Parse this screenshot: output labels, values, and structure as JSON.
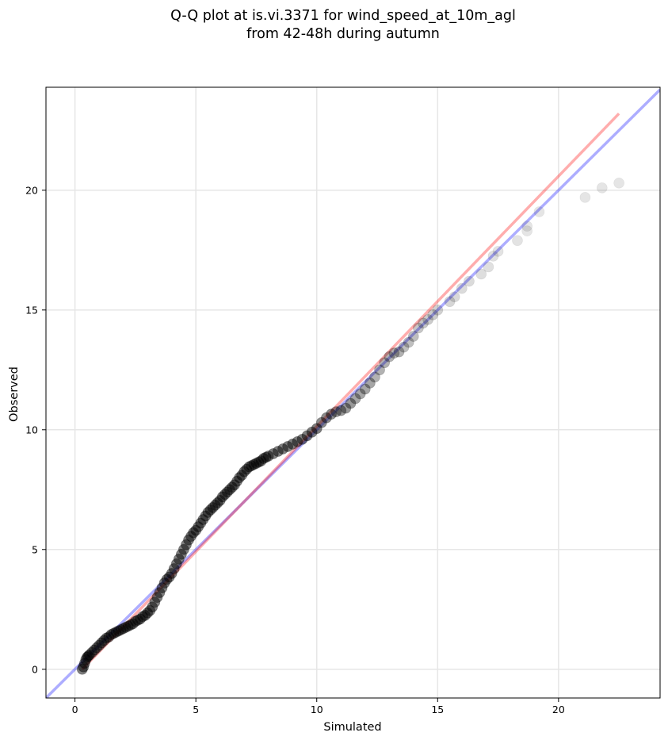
{
  "chart_data": {
    "type": "scatter",
    "title": "Q-Q plot at is.vi.3371 for wind_speed_at_10m_agl",
    "subtitle": "from 42-48h during autumn",
    "xlabel": "Simulated",
    "ylabel": "Observed",
    "xlim": [
      -1.2,
      24.2
    ],
    "ylim": [
      -1.2,
      24.3
    ],
    "xticks": [
      0,
      5,
      10,
      15,
      20
    ],
    "yticks": [
      0,
      5,
      10,
      15,
      20
    ],
    "grid": true,
    "colors": {
      "points": "#000000",
      "identity_line": "#0000ff",
      "fit_line": "#ff0000"
    },
    "identity_line": {
      "x": [
        -1.2,
        24.2
      ],
      "y": [
        -1.2,
        24.2
      ]
    },
    "fit_line": {
      "x": [
        0.3,
        22.5
      ],
      "y": [
        0.0,
        23.2
      ]
    },
    "points": {
      "x": [
        0.3,
        0.35,
        0.4,
        0.45,
        0.5,
        0.55,
        0.6,
        0.7,
        0.8,
        0.9,
        1.0,
        1.1,
        1.2,
        1.3,
        1.4,
        1.5,
        1.6,
        1.7,
        1.8,
        1.9,
        2.0,
        2.1,
        2.2,
        2.3,
        2.4,
        2.5,
        2.6,
        2.7,
        2.8,
        2.9,
        3.0,
        3.1,
        3.2,
        3.3,
        3.4,
        3.5,
        3.6,
        3.7,
        3.8,
        3.9,
        4.0,
        4.1,
        4.2,
        4.3,
        4.4,
        4.5,
        4.6,
        4.7,
        4.8,
        4.9,
        5.0,
        5.1,
        5.2,
        5.3,
        5.4,
        5.5,
        5.6,
        5.7,
        5.8,
        5.9,
        6.0,
        6.1,
        6.2,
        6.3,
        6.4,
        6.5,
        6.6,
        6.7,
        6.8,
        6.9,
        7.0,
        7.1,
        7.2,
        7.3,
        7.4,
        7.5,
        7.6,
        7.7,
        7.8,
        7.9,
        8.0,
        8.2,
        8.4,
        8.6,
        8.8,
        9.0,
        9.2,
        9.4,
        9.6,
        9.8,
        10.0,
        10.2,
        10.4,
        10.6,
        10.8,
        11.0,
        11.2,
        11.4,
        11.6,
        11.8,
        12.0,
        12.2,
        12.4,
        12.6,
        12.8,
        13.0,
        13.2,
        13.4,
        13.6,
        13.8,
        14.0,
        14.2,
        14.4,
        14.6,
        14.8,
        15.0,
        15.5,
        15.7,
        16.0,
        16.3,
        16.8,
        17.1,
        17.3,
        17.5,
        18.3,
        18.7,
        18.7,
        19.2,
        21.1,
        21.8,
        22.5
      ],
      "y": [
        0.0,
        0.1,
        0.25,
        0.4,
        0.5,
        0.55,
        0.6,
        0.7,
        0.8,
        0.9,
        1.0,
        1.1,
        1.2,
        1.3,
        1.35,
        1.45,
        1.5,
        1.55,
        1.6,
        1.65,
        1.7,
        1.75,
        1.8,
        1.85,
        1.9,
        2.0,
        2.05,
        2.1,
        2.2,
        2.25,
        2.35,
        2.45,
        2.6,
        2.8,
        3.0,
        3.2,
        3.4,
        3.6,
        3.75,
        3.85,
        4.0,
        4.2,
        4.4,
        4.6,
        4.8,
        5.0,
        5.2,
        5.4,
        5.55,
        5.7,
        5.8,
        5.95,
        6.1,
        6.25,
        6.4,
        6.55,
        6.65,
        6.75,
        6.85,
        6.95,
        7.05,
        7.2,
        7.3,
        7.4,
        7.5,
        7.6,
        7.7,
        7.85,
        8.0,
        8.1,
        8.25,
        8.35,
        8.45,
        8.5,
        8.55,
        8.6,
        8.65,
        8.7,
        8.8,
        8.85,
        8.9,
        9.0,
        9.1,
        9.2,
        9.3,
        9.4,
        9.5,
        9.6,
        9.75,
        9.9,
        10.05,
        10.3,
        10.5,
        10.65,
        10.75,
        10.8,
        10.9,
        11.1,
        11.3,
        11.5,
        11.7,
        11.95,
        12.2,
        12.5,
        12.8,
        13.05,
        13.2,
        13.25,
        13.45,
        13.65,
        13.9,
        14.25,
        14.45,
        14.6,
        14.8,
        15.0,
        15.35,
        15.55,
        15.9,
        16.2,
        16.5,
        16.8,
        17.25,
        17.45,
        17.9,
        18.3,
        18.5,
        19.1,
        19.7,
        20.1,
        20.3
      ],
      "alpha": [
        0.5,
        0.5,
        0.5,
        0.5,
        0.5,
        0.5,
        0.5,
        0.5,
        0.5,
        0.5,
        0.5,
        0.5,
        0.5,
        0.5,
        0.5,
        0.5,
        0.5,
        0.5,
        0.5,
        0.5,
        0.5,
        0.5,
        0.5,
        0.5,
        0.5,
        0.5,
        0.5,
        0.5,
        0.5,
        0.5,
        0.5,
        0.5,
        0.5,
        0.5,
        0.5,
        0.5,
        0.5,
        0.5,
        0.5,
        0.5,
        0.5,
        0.5,
        0.5,
        0.5,
        0.5,
        0.5,
        0.5,
        0.5,
        0.5,
        0.5,
        0.5,
        0.5,
        0.5,
        0.5,
        0.5,
        0.5,
        0.5,
        0.5,
        0.5,
        0.5,
        0.5,
        0.5,
        0.5,
        0.5,
        0.5,
        0.5,
        0.5,
        0.5,
        0.5,
        0.5,
        0.5,
        0.5,
        0.5,
        0.5,
        0.5,
        0.5,
        0.5,
        0.5,
        0.5,
        0.5,
        0.5,
        0.5,
        0.5,
        0.5,
        0.5,
        0.5,
        0.5,
        0.5,
        0.5,
        0.5,
        0.5,
        0.45,
        0.45,
        0.45,
        0.4,
        0.4,
        0.4,
        0.4,
        0.35,
        0.35,
        0.35,
        0.35,
        0.3,
        0.3,
        0.3,
        0.3,
        0.3,
        0.3,
        0.25,
        0.25,
        0.25,
        0.22,
        0.22,
        0.2,
        0.2,
        0.18,
        0.16,
        0.15,
        0.14,
        0.14,
        0.13,
        0.12,
        0.12,
        0.11,
        0.11,
        0.1,
        0.1,
        0.1,
        0.1,
        0.1,
        0.1
      ]
    }
  }
}
